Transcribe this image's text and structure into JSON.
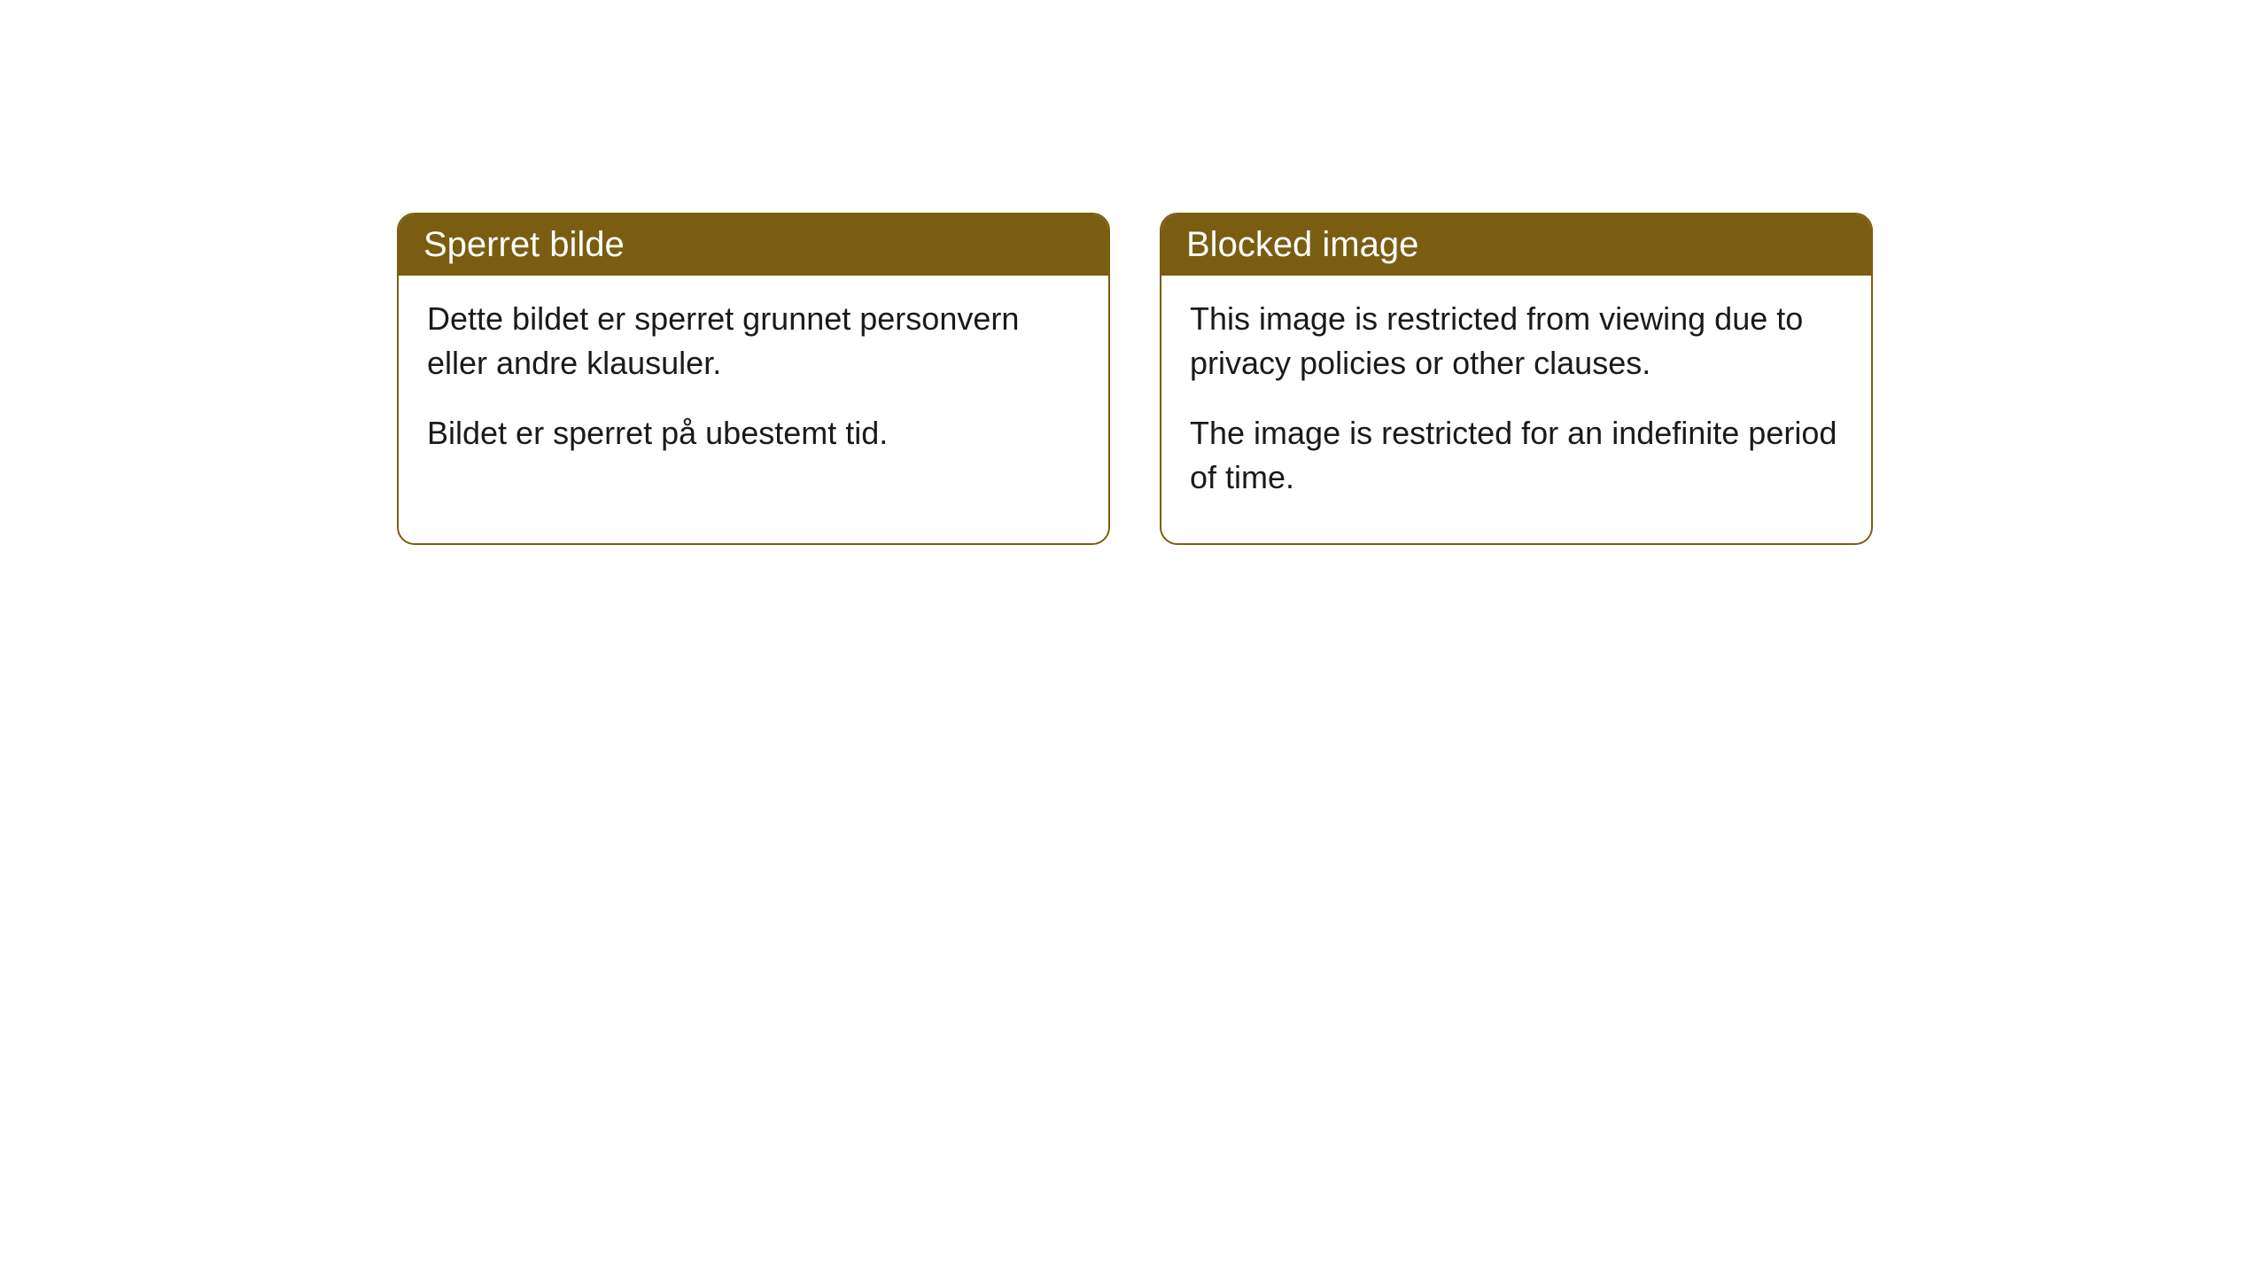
{
  "cards": [
    {
      "title": "Sperret bilde",
      "paragraph1": "Dette bildet er sperret grunnet personvern eller andre klausuler.",
      "paragraph2": "Bildet er sperret på ubestemt tid."
    },
    {
      "title": "Blocked image",
      "paragraph1": "This image is restricted from viewing due to privacy policies or other clauses.",
      "paragraph2": "The image is restricted for an indefinite period of time."
    }
  ],
  "styling": {
    "header_background_color": "#7a5d11",
    "header_text_color": "#ffffff",
    "border_color": "#7a5d11",
    "body_background_color": "#ffffff",
    "body_text_color": "#1a1a1a",
    "border_radius": 20,
    "header_fontsize": 40,
    "body_fontsize": 36
  }
}
